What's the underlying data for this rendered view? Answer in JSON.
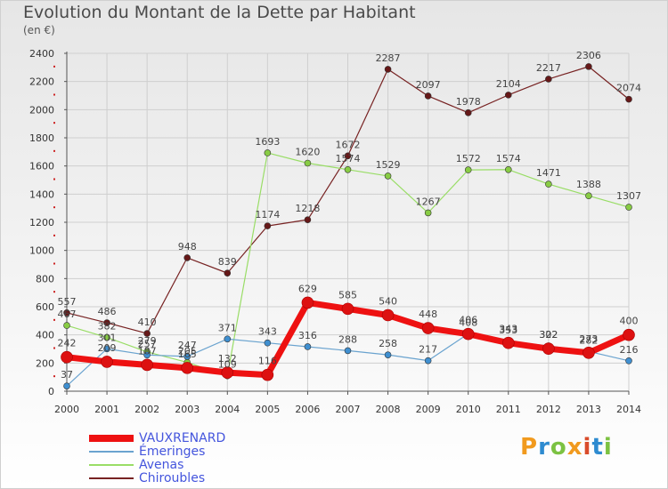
{
  "header": {
    "title": "Evolution du Montant de la Dette par Habitant",
    "unit": "(en €)"
  },
  "logo": {
    "text": "Proxiti",
    "letter_colors": [
      "#f19a1e",
      "#2e8bd0",
      "#7cc242",
      "#f19a1e",
      "#d94b2b",
      "#2e8bd0",
      "#7cc242"
    ]
  },
  "chart_data": {
    "type": "line",
    "title": "Evolution du Montant de la Dette par Habitant",
    "ylabel": "(en €)",
    "xlabel": "",
    "x": [
      "2000",
      "2001",
      "2002",
      "2003",
      "2004",
      "2005",
      "2006",
      "2007",
      "2008",
      "2009",
      "2010",
      "2011",
      "2012",
      "2013",
      "2014"
    ],
    "ylim": [
      0,
      2400
    ],
    "yticks": [
      0,
      200,
      400,
      600,
      800,
      1000,
      1200,
      1400,
      1600,
      1800,
      2000,
      2200,
      2400
    ],
    "grid": true,
    "legend_position": "bottom-left",
    "series": [
      {
        "name": "VAUXRENARD",
        "color": "#ee1111",
        "marker_color": "#dd1111",
        "width": 7,
        "labels": true,
        "values": [
          242,
          209,
          187,
          165,
          132,
          116,
          629,
          585,
          540,
          448,
          406,
          343,
          302,
          273,
          400
        ]
      },
      {
        "name": "Émeringes",
        "color": "#6aa3cf",
        "marker_color": "#3f8fd0",
        "width": 1.2,
        "labels": true,
        "values": [
          37,
          301,
          257,
          247,
          371,
          343,
          316,
          288,
          258,
          217,
          408,
          353,
          322,
          282,
          216
        ]
      },
      {
        "name": "Avenas",
        "color": "#99dd66",
        "marker_color": "#88cc44",
        "width": 1.2,
        "labels": false,
        "values": [
          467,
          382,
          279,
          205,
          109,
          1693,
          1620,
          1574,
          1529,
          1267,
          1572,
          1574,
          1471,
          1388,
          1307
        ]
      },
      {
        "name": "Chiroubles",
        "color": "#772222",
        "marker_color": "#661818",
        "width": 1.2,
        "labels": true,
        "values": [
          557,
          486,
          410,
          948,
          839,
          1174,
          1218,
          1672,
          2287,
          2097,
          1978,
          2104,
          2217,
          2306,
          2074
        ]
      }
    ],
    "data_labels": [
      {
        "x": "2000",
        "text": "557"
      },
      {
        "x": "2001",
        "text": "486"
      },
      {
        "x": "2002",
        "text": "410"
      },
      {
        "x": "2003",
        "text": "948"
      },
      {
        "x": "2004",
        "text": "839"
      },
      {
        "x": "2005",
        "text": "1174"
      },
      {
        "x": "2006",
        "text": "1218"
      },
      {
        "x": "2007",
        "text": "1672"
      },
      {
        "x": "2008",
        "text": "2287"
      },
      {
        "x": "2009",
        "text": "2097"
      },
      {
        "x": "2010",
        "text": "1978"
      },
      {
        "x": "2011",
        "text": "2104"
      },
      {
        "x": "2012",
        "text": "2217"
      },
      {
        "x": "2013",
        "text": "2306"
      },
      {
        "x": "2014",
        "text": "2074"
      },
      {
        "x": "2005",
        "text": "1693"
      },
      {
        "x": "2006",
        "text": "1620"
      },
      {
        "x": "2007",
        "text": "1574"
      },
      {
        "x": "2008",
        "text": "1529"
      },
      {
        "x": "2009",
        "text": "1267"
      },
      {
        "x": "2010",
        "text": "1572"
      },
      {
        "x": "2011",
        "text": "1574"
      },
      {
        "x": "2012",
        "text": "1471"
      },
      {
        "x": "2013",
        "text": "1388"
      },
      {
        "x": "2014",
        "text": "1307"
      },
      {
        "x": "2000",
        "text": "467"
      },
      {
        "x": "2001",
        "text": "382"
      },
      {
        "x": "2002",
        "text": "279"
      },
      {
        "x": "2003",
        "text": "205"
      },
      {
        "x": "2004",
        "text": "109"
      },
      {
        "x": "2000",
        "text": "242"
      },
      {
        "x": "2001",
        "text": "209"
      },
      {
        "x": "2002",
        "text": "187"
      },
      {
        "x": "2003",
        "text": "165"
      },
      {
        "x": "2004",
        "text": "132"
      },
      {
        "x": "2005",
        "text": "116"
      },
      {
        "x": "2006",
        "text": "629"
      },
      {
        "x": "2007",
        "text": "585"
      },
      {
        "x": "2008",
        "text": "540"
      },
      {
        "x": "2009",
        "text": "448"
      },
      {
        "x": "2010",
        "text": "406"
      },
      {
        "x": "2011",
        "text": "343"
      },
      {
        "x": "2012",
        "text": "302"
      },
      {
        "x": "2013",
        "text": "273"
      },
      {
        "x": "2014",
        "text": "400"
      },
      {
        "x": "2000",
        "text": "37"
      },
      {
        "x": "2001",
        "text": "301"
      },
      {
        "x": "2002",
        "text": "257"
      },
      {
        "x": "2003",
        "text": "247"
      },
      {
        "x": "2004",
        "text": "371"
      },
      {
        "x": "2005",
        "text": "343"
      },
      {
        "x": "2006",
        "text": "316"
      },
      {
        "x": "2007",
        "text": "288"
      },
      {
        "x": "2008",
        "text": "258"
      },
      {
        "x": "2009",
        "text": "217"
      },
      {
        "x": "2010",
        "text": "408"
      },
      {
        "x": "2011",
        "text": "353"
      },
      {
        "x": "2012",
        "text": "322"
      },
      {
        "x": "2013",
        "text": "282"
      },
      {
        "x": "2014",
        "text": "216"
      }
    ]
  }
}
